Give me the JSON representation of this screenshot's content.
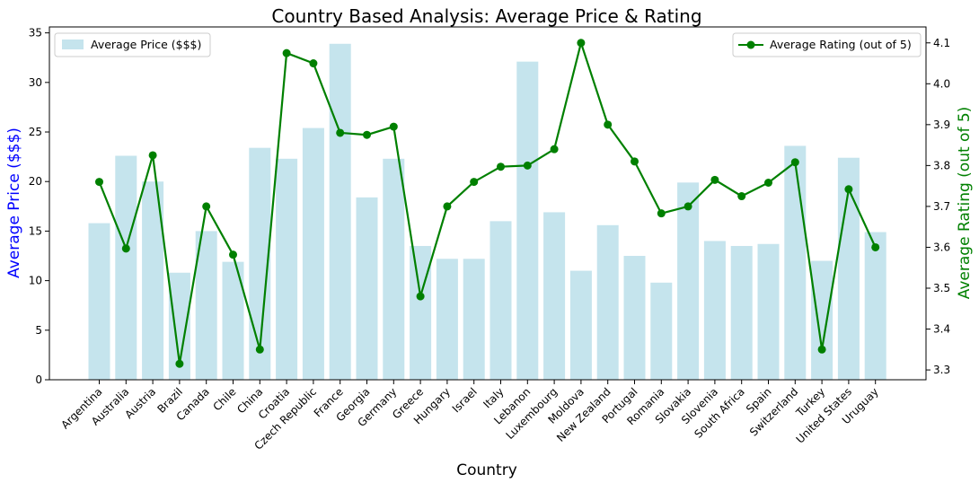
{
  "chart_data": {
    "type": "bar",
    "title": "Country Based Analysis: Average Price & Rating",
    "xlabel": "Country",
    "ylabel_left": "Average Price ($$$)",
    "ylabel_right": "Average Rating (out of 5)",
    "categories": [
      "Argentina",
      "Australia",
      "Austria",
      "Brazil",
      "Canada",
      "Chile",
      "China",
      "Croatia",
      "Czech Republic",
      "France",
      "Georgia",
      "Germany",
      "Greece",
      "Hungary",
      "Israel",
      "Italy",
      "Lebanon",
      "Luxembourg",
      "Moldova",
      "New Zealand",
      "Portugal",
      "Romania",
      "Slovakia",
      "Slovenia",
      "South Africa",
      "Spain",
      "Switzerland",
      "Turkey",
      "United States",
      "Uruguay"
    ],
    "series": [
      {
        "name": "Average Price ($$$)",
        "type": "bar",
        "axis": "left",
        "color": "#add8e6",
        "values": [
          15.8,
          22.6,
          20.0,
          10.8,
          15.0,
          11.9,
          23.4,
          22.3,
          25.4,
          33.9,
          18.4,
          22.3,
          13.5,
          12.2,
          12.2,
          16.0,
          32.1,
          16.9,
          11.0,
          15.6,
          12.5,
          9.8,
          19.9,
          14.0,
          13.5,
          13.7,
          23.6,
          12.0,
          22.4,
          14.9
        ]
      },
      {
        "name": "Average Rating (out of 5)",
        "type": "line",
        "axis": "right",
        "color": "#008000",
        "values": [
          3.76,
          3.597,
          3.825,
          3.315,
          3.7,
          3.582,
          3.35,
          4.075,
          4.05,
          3.88,
          3.875,
          3.895,
          3.48,
          3.7,
          3.76,
          3.797,
          3.8,
          3.84,
          4.1,
          3.9,
          3.81,
          3.683,
          3.7,
          3.765,
          3.725,
          3.758,
          3.808,
          3.35,
          3.742,
          3.6
        ]
      }
    ],
    "ylim_left": [
      0,
      35.6
    ],
    "yticks_left": [
      "0",
      "5",
      "10",
      "15",
      "20",
      "25",
      "30",
      "35"
    ],
    "ylim_right": [
      3.276,
      4.139
    ],
    "yticks_right": [
      "3.3",
      "3.4",
      "3.5",
      "3.6",
      "3.7",
      "3.8",
      "3.9",
      "4.0",
      "4.1"
    ],
    "legend_left_placement": "top-left",
    "legend_right_placement": "top-right",
    "grid": false
  }
}
